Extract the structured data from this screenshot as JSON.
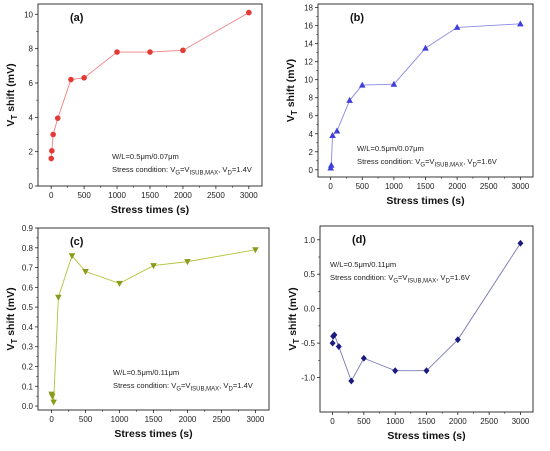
{
  "chart_data": [
    {
      "type": "line",
      "label": "(a)",
      "xlabel": "Stress times (s)",
      "ylabel": "V",
      "ylabel_sub": "T",
      "ylabel_rest": " shift (mV)",
      "xlim": [
        -200,
        3200
      ],
      "ylim": [
        0,
        10.6
      ],
      "xticks": [
        "0",
        "500",
        "1000",
        "1500",
        "2000",
        "2500",
        "3000"
      ],
      "xtick_values": [
        0,
        500,
        1000,
        1500,
        2000,
        2500,
        3000
      ],
      "yticks": [
        "0",
        "2",
        "4",
        "6",
        "8",
        "10"
      ],
      "ytick_values": [
        0,
        2,
        4,
        6,
        8,
        10
      ],
      "color": "#e53935",
      "line_color": "#f08080",
      "marker": "circle",
      "note1": "W/L=0.5μm/0.07μm",
      "note2": {
        "pre": "Stress condition: V",
        "s1": "G",
        "m1": "=V",
        "s2": "ISUB,MAX",
        "m2": ", V",
        "s3": "D",
        "post": "=1.4V"
      },
      "series": [
        {
          "x": [
            1,
            10,
            30,
            100,
            300,
            500,
            1000,
            1500,
            2000,
            3000
          ],
          "values": [
            1.6,
            2.05,
            3.0,
            3.95,
            6.2,
            6.3,
            7.8,
            7.8,
            7.9,
            10.1
          ]
        }
      ]
    },
    {
      "type": "line",
      "label": "(b)",
      "xlabel": "Stress times (s)",
      "ylabel": "V",
      "ylabel_sub": "T",
      "ylabel_rest": " shift (mV)",
      "xlim": [
        -200,
        3200
      ],
      "ylim": [
        -0.8,
        18.4
      ],
      "xticks": [
        "0",
        "500",
        "1000",
        "1500",
        "2000",
        "2500",
        "3000"
      ],
      "xtick_values": [
        0,
        500,
        1000,
        1500,
        2000,
        2500,
        3000
      ],
      "yticks": [
        "0",
        "2",
        "4",
        "6",
        "8",
        "10",
        "12",
        "14",
        "16",
        "18"
      ],
      "ytick_values": [
        0,
        2,
        4,
        6,
        8,
        10,
        12,
        14,
        16,
        18
      ],
      "color": "#3f3fd9",
      "line_color": "#8a8ae6",
      "marker": "triangle-up",
      "note1": "W/L=0.5μm/0.07μm",
      "note2": {
        "pre": "Stress condition: V",
        "s1": "G",
        "m1": "=V",
        "s2": "ISUB,MAX",
        "m2": ", V",
        "s3": "D",
        "post": "=1.6V"
      },
      "series": [
        {
          "x": [
            1,
            10,
            30,
            100,
            300,
            500,
            1000,
            1500,
            2000,
            3000
          ],
          "values": [
            0.2,
            0.5,
            3.8,
            4.3,
            7.7,
            9.4,
            9.5,
            13.5,
            15.8,
            16.2
          ]
        }
      ]
    },
    {
      "type": "line",
      "label": "(c)",
      "xlabel": "Stress times (s)",
      "ylabel": "V",
      "ylabel_sub": "T",
      "ylabel_rest": " shift (mV)",
      "xlim": [
        -200,
        3200
      ],
      "ylim": [
        -0.02,
        0.9
      ],
      "xticks": [
        "0",
        "500",
        "1000",
        "1500",
        "2000",
        "2500",
        "3000"
      ],
      "xtick_values": [
        0,
        500,
        1000,
        1500,
        2000,
        2500,
        3000
      ],
      "yticks": [
        "0.0",
        "0.1",
        "0.2",
        "0.3",
        "0.4",
        "0.5",
        "0.6",
        "0.7",
        "0.8",
        "0.9"
      ],
      "ytick_values": [
        0,
        0.1,
        0.2,
        0.3,
        0.4,
        0.5,
        0.6,
        0.7,
        0.8,
        0.9
      ],
      "color": "#8a9a1b",
      "line_color": "#b6c23a",
      "marker": "triangle-down",
      "note1": "W/L=0.5μm/0.11μm",
      "note2": {
        "pre": "Stress condition: V",
        "s1": "G",
        "m1": "=V",
        "s2": "ISUB,MAX",
        "m2": ", V",
        "s3": "D",
        "post": "=1.4V"
      },
      "series": [
        {
          "x": [
            1,
            10,
            30,
            100,
            300,
            500,
            1000,
            1500,
            2000,
            3000
          ],
          "values": [
            0.06,
            0.05,
            0.02,
            0.55,
            0.76,
            0.68,
            0.62,
            0.71,
            0.73,
            0.79
          ]
        }
      ]
    },
    {
      "type": "line",
      "label": "(d)",
      "xlabel": "Stress times (s)",
      "ylabel": "V",
      "ylabel_sub": "T",
      "ylabel_rest": " shift (mV)",
      "xlim": [
        -200,
        3200
      ],
      "ylim": [
        -1.5,
        1.2
      ],
      "xticks": [
        "0",
        "500",
        "1000",
        "1500",
        "2000",
        "2500",
        "3000"
      ],
      "xtick_values": [
        0,
        500,
        1000,
        1500,
        2000,
        2500,
        3000
      ],
      "yticks": [
        "-1.0",
        "-0.5",
        "0.0",
        "0.5",
        "1.0"
      ],
      "ytick_values": [
        -1.0,
        -0.5,
        0.0,
        0.5,
        1.0
      ],
      "color": "#1a1a80",
      "line_color": "#7a7ab8",
      "marker": "diamond",
      "note1": "W/L=0.5μm/0.11μm",
      "note2": {
        "pre": "Stress condition: V",
        "s1": "G",
        "m1": "=V",
        "s2": "ISUB,MAX",
        "m2": ", V",
        "s3": "D",
        "post": "=1.6V"
      },
      "series": [
        {
          "x": [
            1,
            10,
            30,
            100,
            300,
            500,
            1000,
            1500,
            2000,
            3000
          ],
          "values": [
            -0.5,
            -0.4,
            -0.38,
            -0.55,
            -1.05,
            -0.72,
            -0.9,
            -0.9,
            -0.45,
            0.95
          ]
        }
      ]
    }
  ]
}
